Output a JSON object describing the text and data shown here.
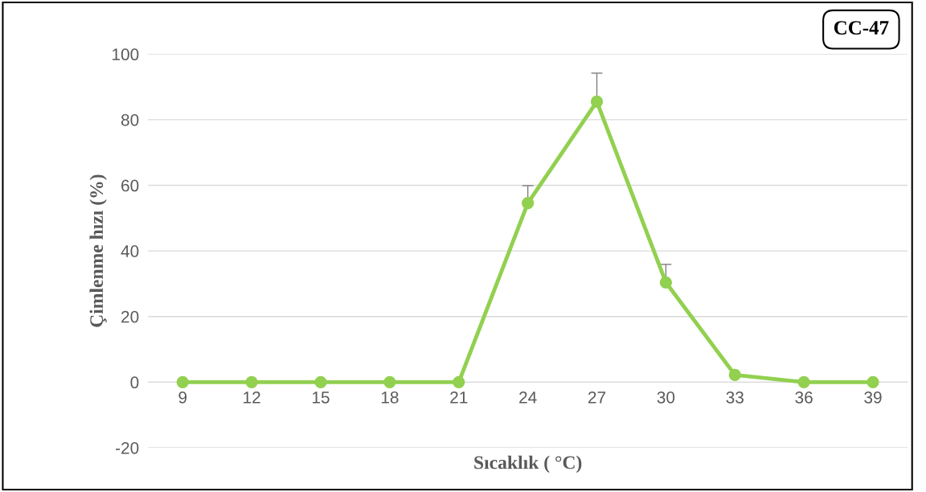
{
  "chart_data": {
    "type": "line",
    "xlabel": "Sıcaklık ( °C)",
    "ylabel": "Çimlenme hızı (%)",
    "annotations": [
      "CC-47"
    ],
    "categories": [
      "9",
      "12",
      "15",
      "18",
      "21",
      "24",
      "27",
      "30",
      "33",
      "36",
      "39"
    ],
    "series": [
      {
        "color": "#92d050",
        "values": [
          0,
          0,
          0,
          0,
          0,
          54.6,
          85.5,
          30.4,
          2.2,
          0,
          0
        ],
        "errors": [
          null,
          null,
          null,
          null,
          null,
          [
            54.6,
            59.9
          ],
          [
            85.5,
            94.2
          ],
          [
            30.4,
            35.9
          ],
          null,
          null,
          null
        ]
      }
    ],
    "ylim": [
      -20,
      100
    ],
    "yticks": [
      -20,
      0,
      20,
      40,
      60,
      80,
      100
    ],
    "grid": "y",
    "marker": "circle",
    "line_style": "solid",
    "legend": false
  }
}
